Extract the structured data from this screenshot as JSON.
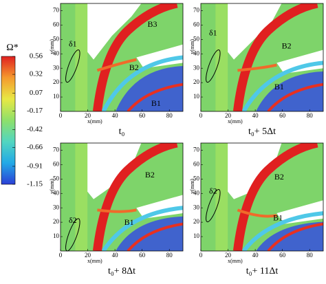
{
  "colorbar": {
    "label": "Ω*",
    "lim": [
      -1.15,
      0.56
    ],
    "ticks": [
      0.56,
      0.32,
      0.07,
      -0.17,
      -0.42,
      -0.66,
      -0.91,
      -1.15
    ],
    "colors": [
      "#2b3fd6",
      "#22a9e6",
      "#52d6c0",
      "#8ee06a",
      "#e8e844",
      "#f59a2e",
      "#e02020"
    ]
  },
  "chart_data": [
    {
      "type": "contour",
      "title": "t₀",
      "xlabel": "x(mm)",
      "ylabel": "y(mm)",
      "xlim": [
        0,
        90
      ],
      "ylim": [
        0,
        75
      ],
      "xticks": [
        0,
        20,
        40,
        60,
        80
      ],
      "yticks": [
        10,
        20,
        30,
        40,
        50,
        60,
        70
      ],
      "annotations": [
        "δ1",
        "B3",
        "B2",
        "B1"
      ]
    },
    {
      "type": "contour",
      "title": "t₀+ 5Δt",
      "xlabel": "x(mm)",
      "ylabel": "y(mm)",
      "xlim": [
        0,
        90
      ],
      "ylim": [
        0,
        75
      ],
      "xticks": [
        0,
        20,
        40,
        60,
        80
      ],
      "yticks": [
        10,
        20,
        30,
        40,
        50,
        60,
        70
      ],
      "annotations": [
        "δ1",
        "B2",
        "B1"
      ]
    },
    {
      "type": "contour",
      "title": "t₀+ 8Δt",
      "xlabel": "x(mm)",
      "ylabel": "y(mm)",
      "xlim": [
        0,
        90
      ],
      "ylim": [
        0,
        75
      ],
      "xticks": [
        0,
        20,
        40,
        60,
        80
      ],
      "yticks": [
        10,
        20,
        30,
        40,
        50,
        60,
        70
      ],
      "annotations": [
        "δ2",
        "B2",
        "B1"
      ]
    },
    {
      "type": "contour",
      "title": "t₀+ 11Δt",
      "xlabel": "x(mm)",
      "ylabel": "y(mm)",
      "xlim": [
        0,
        90
      ],
      "ylim": [
        0,
        75
      ],
      "xticks": [
        0,
        20,
        40,
        60,
        80
      ],
      "yticks": [
        10,
        20,
        30,
        40,
        50,
        60,
        70
      ],
      "annotations": [
        "δ2",
        "B2",
        "B1"
      ]
    }
  ]
}
